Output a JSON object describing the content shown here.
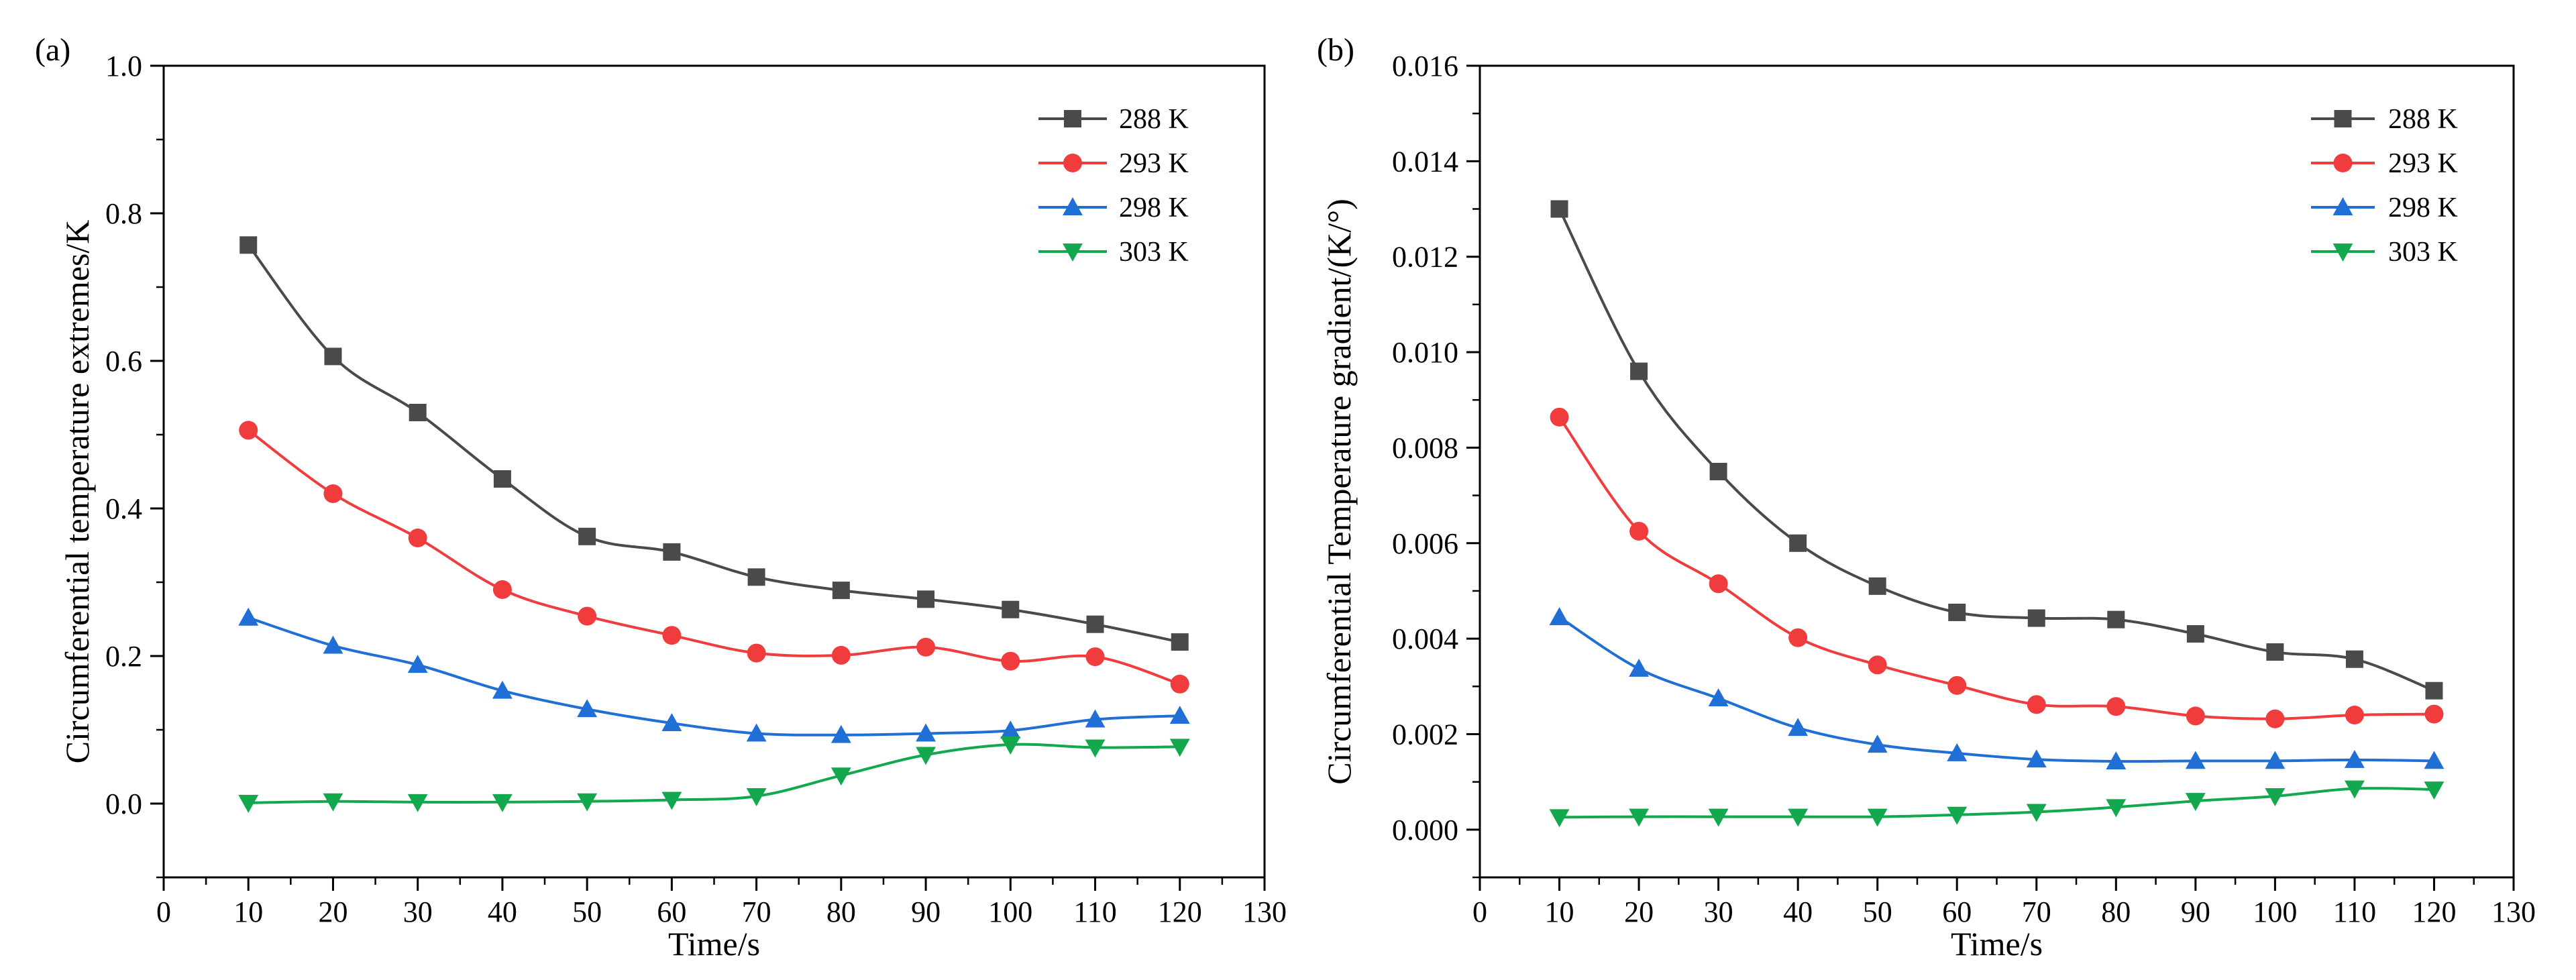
{
  "chart_data": [
    {
      "panel": "(a)",
      "type": "line",
      "title": "",
      "xlabel": "Time/s",
      "ylabel": "Circumferential temperature extremes/K",
      "xlim": [
        0,
        130
      ],
      "ylim": [
        -0.1,
        1.0
      ],
      "xticks": [
        0,
        10,
        20,
        30,
        40,
        50,
        60,
        70,
        80,
        90,
        100,
        110,
        120,
        130
      ],
      "yticks": [
        0.0,
        0.2,
        0.4,
        0.6,
        0.8,
        1.0
      ],
      "yticklabels": [
        "0.0",
        "0.2",
        "0.4",
        "0.6",
        "0.8",
        "1.0"
      ],
      "grid": false,
      "legend_position": "top-right",
      "x": [
        10,
        20,
        30,
        40,
        50,
        60,
        70,
        80,
        90,
        100,
        110,
        120
      ],
      "series": [
        {
          "name": "288 K",
          "color": "#4a4a4a",
          "marker": "square",
          "values": [
            0.757,
            0.606,
            0.53,
            0.44,
            0.362,
            0.341,
            0.307,
            0.289,
            0.277,
            0.263,
            0.243,
            0.219
          ]
        },
        {
          "name": "293 K",
          "color": "#f03c3c",
          "marker": "circle",
          "values": [
            0.506,
            0.42,
            0.36,
            0.29,
            0.254,
            0.228,
            0.204,
            0.201,
            0.212,
            0.193,
            0.199,
            0.162
          ]
        },
        {
          "name": "298 K",
          "color": "#1f6fd6",
          "marker": "triangle-up",
          "values": [
            0.252,
            0.214,
            0.188,
            0.153,
            0.128,
            0.109,
            0.095,
            0.093,
            0.095,
            0.099,
            0.114,
            0.119
          ]
        },
        {
          "name": "303 K",
          "color": "#14a84e",
          "marker": "triangle-down",
          "values": [
            0.001,
            0.003,
            0.002,
            0.002,
            0.003,
            0.005,
            0.01,
            0.038,
            0.066,
            0.08,
            0.076,
            0.077
          ]
        }
      ]
    },
    {
      "panel": "(b)",
      "type": "line",
      "title": "",
      "xlabel": "Time/s",
      "ylabel": "Circumferential Temperature gradient/(K/°)",
      "xlim": [
        0,
        130
      ],
      "ylim": [
        -0.001,
        0.016
      ],
      "xticks": [
        0,
        10,
        20,
        30,
        40,
        50,
        60,
        70,
        80,
        90,
        100,
        110,
        120,
        130
      ],
      "yticks": [
        0.0,
        0.002,
        0.004,
        0.006,
        0.008,
        0.01,
        0.012,
        0.014,
        0.016
      ],
      "yticklabels": [
        "0.000",
        "0.002",
        "0.004",
        "0.006",
        "0.008",
        "0.010",
        "0.012",
        "0.014",
        "0.016"
      ],
      "grid": false,
      "legend_position": "top-right",
      "x": [
        10,
        20,
        30,
        40,
        50,
        60,
        70,
        80,
        90,
        100,
        110,
        120
      ],
      "series": [
        {
          "name": "288 K",
          "color": "#4a4a4a",
          "marker": "square",
          "values": [
            0.013,
            0.0096,
            0.0075,
            0.006,
            0.0051,
            0.00455,
            0.00443,
            0.0044,
            0.0041,
            0.00372,
            0.00357,
            0.00291
          ]
        },
        {
          "name": "293 K",
          "color": "#f03c3c",
          "marker": "circle",
          "values": [
            0.00864,
            0.00625,
            0.00515,
            0.00402,
            0.00345,
            0.00302,
            0.00262,
            0.00258,
            0.00238,
            0.00232,
            0.0024,
            0.00242
          ]
        },
        {
          "name": "298 K",
          "color": "#1f6fd6",
          "marker": "triangle-up",
          "values": [
            0.00445,
            0.00337,
            0.00275,
            0.00213,
            0.00178,
            0.0016,
            0.00147,
            0.00143,
            0.00144,
            0.00144,
            0.00146,
            0.00144
          ]
        },
        {
          "name": "303 K",
          "color": "#14a84e",
          "marker": "triangle-down",
          "values": [
            0.00026,
            0.00027,
            0.00027,
            0.00027,
            0.00027,
            0.00031,
            0.00037,
            0.00047,
            0.0006,
            0.0007,
            0.00086,
            0.00084
          ]
        }
      ]
    }
  ]
}
